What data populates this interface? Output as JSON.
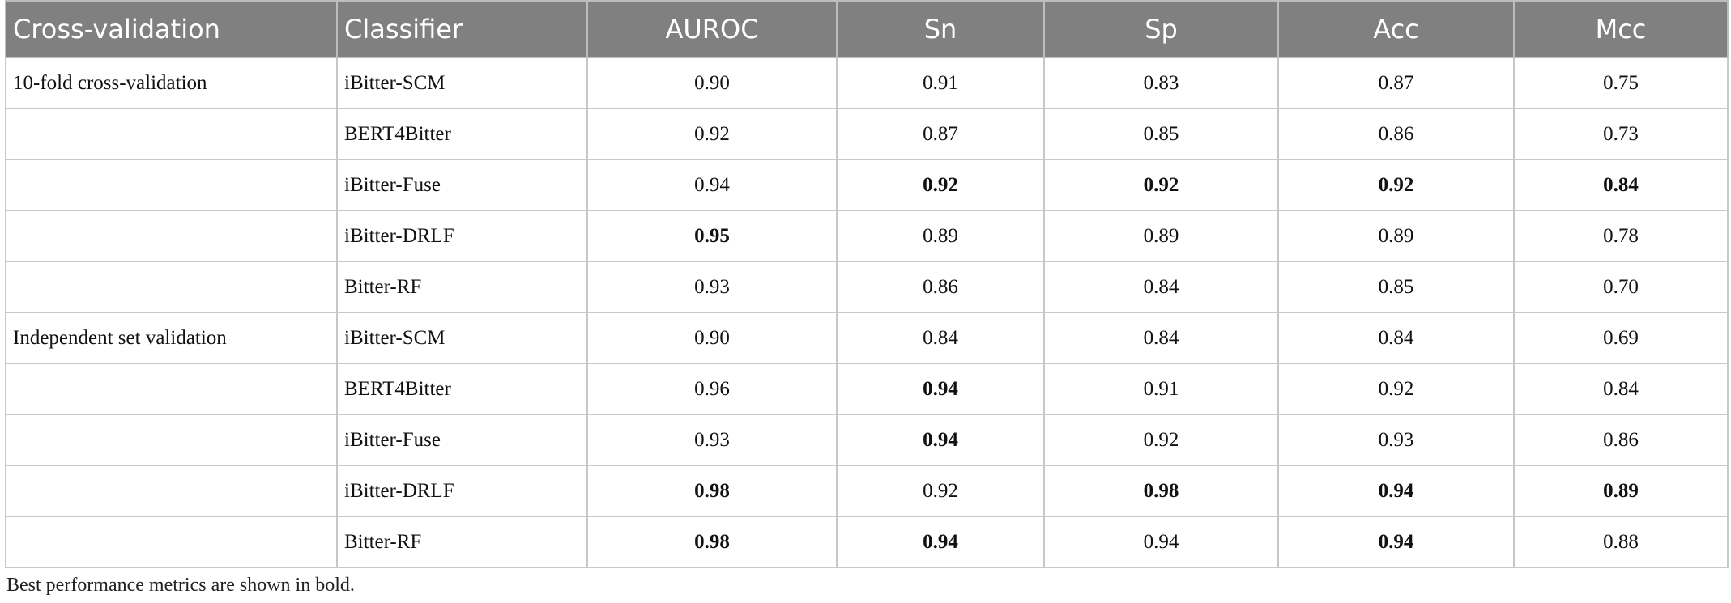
{
  "header": [
    "Cross-validation",
    "Classifier",
    "AUROC",
    "Sn",
    "Sp",
    "Acc",
    "Mcc"
  ],
  "groups": [
    {
      "name": "10-fold cross-validation",
      "rows": [
        {
          "classifier": "iBitter-SCM",
          "values": [
            "0.90",
            "0.91",
            "0.83",
            "0.87",
            "0.75"
          ],
          "bold": [
            false,
            false,
            false,
            false,
            false
          ]
        },
        {
          "classifier": "BERT4Bitter",
          "values": [
            "0.92",
            "0.87",
            "0.85",
            "0.86",
            "0.73"
          ],
          "bold": [
            false,
            false,
            false,
            false,
            false
          ]
        },
        {
          "classifier": "iBitter-Fuse",
          "values": [
            "0.94",
            "0.92",
            "0.92",
            "0.92",
            "0.84"
          ],
          "bold": [
            false,
            true,
            true,
            true,
            true
          ]
        },
        {
          "classifier": "iBitter-DRLF",
          "values": [
            "0.95",
            "0.89",
            "0.89",
            "0.89",
            "0.78"
          ],
          "bold": [
            true,
            false,
            false,
            false,
            false
          ]
        },
        {
          "classifier": "Bitter-RF",
          "values": [
            "0.93",
            "0.86",
            "0.84",
            "0.85",
            "0.70"
          ],
          "bold": [
            false,
            false,
            false,
            false,
            false
          ]
        }
      ]
    },
    {
      "name": "Independent set validation",
      "rows": [
        {
          "classifier": "iBitter-SCM",
          "values": [
            "0.90",
            "0.84",
            "0.84",
            "0.84",
            "0.69"
          ],
          "bold": [
            false,
            false,
            false,
            false,
            false
          ]
        },
        {
          "classifier": "BERT4Bitter",
          "values": [
            "0.96",
            "0.94",
            "0.91",
            "0.92",
            "0.84"
          ],
          "bold": [
            false,
            true,
            false,
            false,
            false
          ]
        },
        {
          "classifier": "iBitter-Fuse",
          "values": [
            "0.93",
            "0.94",
            "0.92",
            "0.93",
            "0.86"
          ],
          "bold": [
            false,
            true,
            false,
            false,
            false
          ]
        },
        {
          "classifier": "iBitter-DRLF",
          "values": [
            "0.98",
            "0.92",
            "0.98",
            "0.94",
            "0.89"
          ],
          "bold": [
            true,
            false,
            true,
            true,
            true
          ]
        },
        {
          "classifier": "Bitter-RF",
          "values": [
            "0.98",
            "0.94",
            "0.94",
            "0.94",
            "0.88"
          ],
          "bold": [
            true,
            true,
            false,
            true,
            false
          ]
        }
      ]
    }
  ],
  "footnote": "Best performance metrics are shown in bold."
}
